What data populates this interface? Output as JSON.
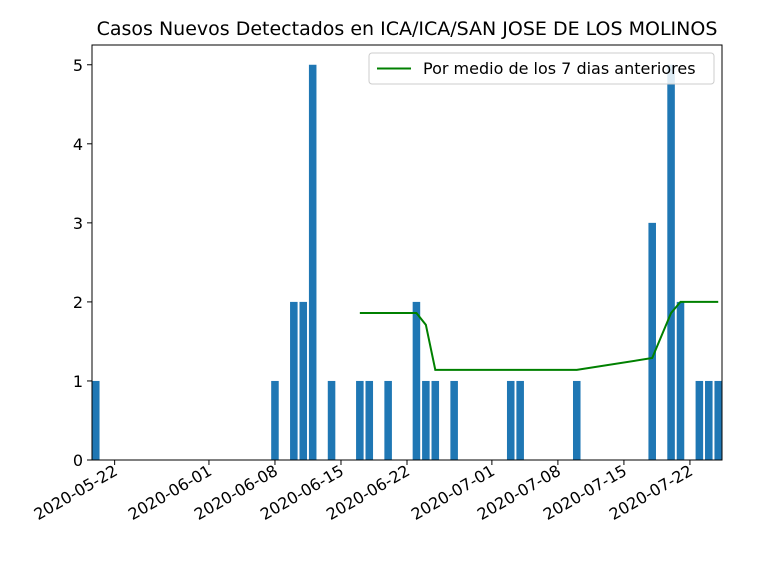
{
  "chart_data": {
    "type": "bar",
    "title": "Casos Nuevos Detectados en ICA/ICA/SAN JOSE DE LOS MOLINOS",
    "xlabel": "",
    "ylabel": "",
    "x_range": [
      "2020-05-20",
      "2020-07-25"
    ],
    "ylim": [
      0,
      5.25
    ],
    "x_ticks": [
      "2020-05-22",
      "2020-06-01",
      "2020-06-08",
      "2020-06-15",
      "2020-06-22",
      "2020-07-01",
      "2020-07-08",
      "2020-07-15",
      "2020-07-22"
    ],
    "y_ticks": [
      0,
      1,
      2,
      3,
      4,
      5
    ],
    "grid": false,
    "legend": {
      "position": "top-right",
      "entries": [
        "Por medio de los 7 dias anteriores"
      ]
    },
    "colors": {
      "bars": "#1f77b4",
      "line": "#008000"
    },
    "bars": [
      {
        "date": "2020-05-20",
        "value": 1
      },
      {
        "date": "2020-06-08",
        "value": 1
      },
      {
        "date": "2020-06-10",
        "value": 2
      },
      {
        "date": "2020-06-11",
        "value": 2
      },
      {
        "date": "2020-06-12",
        "value": 5
      },
      {
        "date": "2020-06-14",
        "value": 1
      },
      {
        "date": "2020-06-17",
        "value": 1
      },
      {
        "date": "2020-06-18",
        "value": 1
      },
      {
        "date": "2020-06-20",
        "value": 1
      },
      {
        "date": "2020-06-23",
        "value": 2
      },
      {
        "date": "2020-06-24",
        "value": 1
      },
      {
        "date": "2020-06-25",
        "value": 1
      },
      {
        "date": "2020-06-27",
        "value": 1
      },
      {
        "date": "2020-07-03",
        "value": 1
      },
      {
        "date": "2020-07-04",
        "value": 1
      },
      {
        "date": "2020-07-10",
        "value": 1
      },
      {
        "date": "2020-07-18",
        "value": 3
      },
      {
        "date": "2020-07-20",
        "value": 5
      },
      {
        "date": "2020-07-21",
        "value": 2
      },
      {
        "date": "2020-07-23",
        "value": 1
      },
      {
        "date": "2020-07-24",
        "value": 1
      },
      {
        "date": "2020-07-25",
        "value": 1
      }
    ],
    "series": [
      {
        "name": "Por medio de los 7 dias anteriores",
        "type": "line",
        "points": [
          {
            "date": "2020-06-17",
            "value": 1.86
          },
          {
            "date": "2020-06-23",
            "value": 1.86
          },
          {
            "date": "2020-06-24",
            "value": 1.71
          },
          {
            "date": "2020-06-25",
            "value": 1.14
          },
          {
            "date": "2020-07-10",
            "value": 1.14
          },
          {
            "date": "2020-07-18",
            "value": 1.29
          },
          {
            "date": "2020-07-20",
            "value": 1.86
          },
          {
            "date": "2020-07-21",
            "value": 2.0
          },
          {
            "date": "2020-07-25",
            "value": 2.0
          }
        ]
      }
    ]
  }
}
